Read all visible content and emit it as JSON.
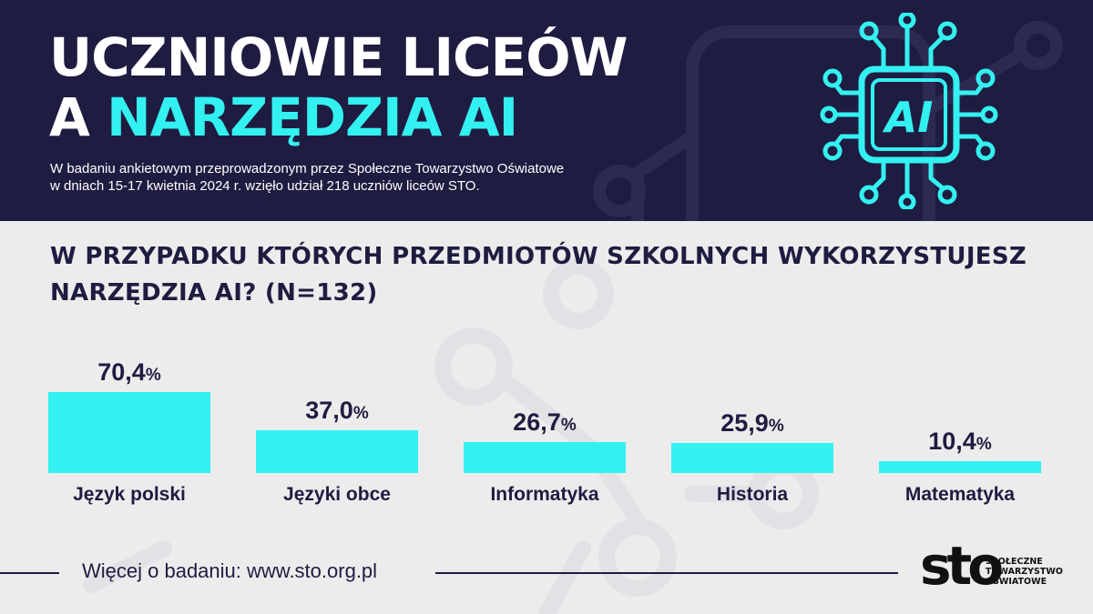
{
  "header": {
    "title_line1": "UCZNIOWIE LICEÓW",
    "title_line2_prefix": "A",
    "title_line2_accent": "NARZĘDZIA AI",
    "intro_line1": "W badaniu ankietowym przeprowadzonym przez Społeczne Towarzystwo Oświatowe",
    "intro_line2": "w dniach 15-17 kwietnia 2024 r. wzięło udział 218 uczniów liceów STO.",
    "chip_label": "AI",
    "chip_icon": "ai-chip-icon"
  },
  "chart_data": {
    "type": "bar",
    "title_line1": "W PRZYPADKU KTÓRYCH PRZEDMIOTÓW SZKOLNYCH WYKORZYSTUJESZ",
    "title_line2": "NARZĘDZIA AI? (N=132)",
    "categories": [
      "Język polski",
      "Języki obce",
      "Informatyka",
      "Historia",
      "Matematyka"
    ],
    "values": [
      70.4,
      37.0,
      26.7,
      25.9,
      10.4
    ],
    "value_labels": [
      "70,4",
      "37,0",
      "26,7",
      "25,9",
      "10,4"
    ],
    "unit": "%",
    "ylim": [
      0,
      100
    ],
    "grid": false,
    "legend": "none",
    "bar_color": "#33f1f1"
  },
  "footer": {
    "more_info": "Więcej o badaniu: www.sto.org.pl"
  },
  "logo": {
    "mark": "sto",
    "line1": "SPOŁECZNE",
    "line2": "TOWARZYSTWO",
    "line3": "OŚWIATOWE"
  },
  "colors": {
    "navy": "#1f1c41",
    "accent": "#33f1f1",
    "background": "#ececec"
  }
}
